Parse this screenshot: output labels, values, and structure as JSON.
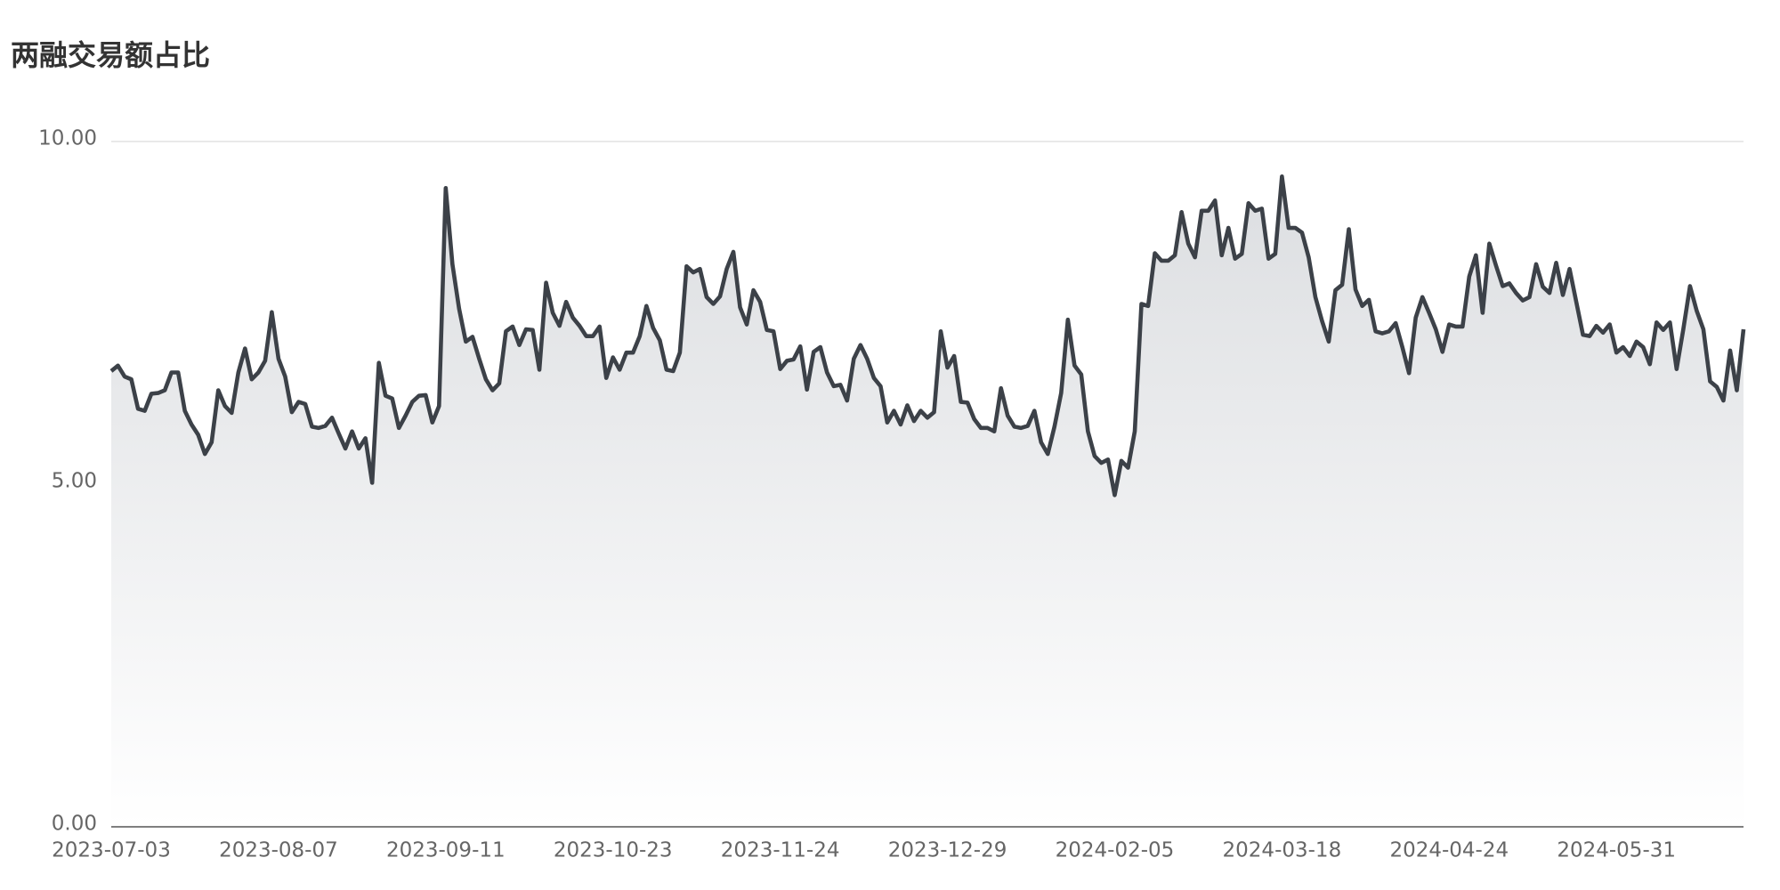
{
  "chart_data": {
    "type": "line",
    "title": "两融交易额占比",
    "categories": [
      "2023-07-03",
      null,
      null,
      null,
      null,
      null,
      null,
      null,
      null,
      null,
      null,
      null,
      null,
      null,
      null,
      null,
      null,
      null,
      null,
      null,
      null,
      null,
      null,
      null,
      null,
      "2023-08-07",
      null,
      null,
      null,
      null,
      null,
      null,
      null,
      null,
      null,
      null,
      null,
      null,
      null,
      null,
      null,
      null,
      null,
      null,
      null,
      null,
      null,
      null,
      null,
      null,
      "2023-09-11",
      null,
      null,
      null,
      null,
      null,
      null,
      null,
      null,
      null,
      null,
      null,
      null,
      null,
      null,
      null,
      null,
      null,
      null,
      null,
      null,
      null,
      null,
      null,
      null,
      "2023-10-23",
      null,
      null,
      null,
      null,
      null,
      null,
      null,
      null,
      null,
      null,
      null,
      null,
      null,
      null,
      null,
      null,
      null,
      null,
      null,
      null,
      null,
      null,
      null,
      null,
      "2023-11-24",
      null,
      null,
      null,
      null,
      null,
      null,
      null,
      null,
      null,
      null,
      null,
      null,
      null,
      null,
      null,
      null,
      null,
      null,
      null,
      null,
      null,
      null,
      null,
      null,
      "2023-12-29",
      null,
      null,
      null,
      null,
      null,
      null,
      null,
      null,
      null,
      null,
      null,
      null,
      null,
      null,
      null,
      null,
      null,
      null,
      null,
      null,
      null,
      null,
      null,
      null,
      "2024-02-05",
      null,
      null,
      null,
      null,
      null,
      null,
      null,
      null,
      null,
      null,
      null,
      null,
      null,
      null,
      null,
      null,
      null,
      null,
      null,
      null,
      null,
      null,
      null,
      null,
      "2024-03-18",
      null,
      null,
      null,
      null,
      null,
      null,
      null,
      null,
      null,
      null,
      null,
      null,
      null,
      null,
      null,
      null,
      null,
      null,
      null,
      null,
      null,
      null,
      null,
      null,
      "2024-04-24",
      null,
      null,
      null,
      null,
      null,
      null,
      null,
      null,
      null,
      null,
      null,
      null,
      null,
      null,
      null,
      null,
      null,
      null,
      null,
      null,
      null,
      null,
      null,
      null,
      "2024-05-31",
      null,
      null,
      null,
      null,
      null,
      null,
      null,
      null,
      null,
      null,
      null,
      null,
      null,
      null,
      null,
      null,
      null,
      null,
      null
    ],
    "values": [
      6.65,
      6.73,
      6.57,
      6.53,
      6.1,
      6.07,
      6.32,
      6.33,
      6.37,
      6.63,
      6.63,
      6.07,
      5.87,
      5.72,
      5.44,
      5.61,
      6.37,
      6.14,
      6.04,
      6.63,
      6.98,
      6.53,
      6.63,
      6.8,
      7.51,
      6.83,
      6.57,
      6.05,
      6.2,
      6.17,
      5.84,
      5.82,
      5.85,
      5.97,
      5.74,
      5.52,
      5.77,
      5.52,
      5.67,
      5.02,
      6.77,
      6.29,
      6.25,
      5.82,
      6.0,
      6.2,
      6.29,
      6.3,
      5.9,
      6.14,
      9.32,
      8.21,
      7.56,
      7.08,
      7.15,
      6.83,
      6.53,
      6.37,
      6.47,
      7.23,
      7.3,
      7.03,
      7.26,
      7.25,
      6.67,
      7.94,
      7.5,
      7.31,
      7.66,
      7.43,
      7.31,
      7.16,
      7.16,
      7.3,
      6.55,
      6.85,
      6.67,
      6.92,
      6.92,
      7.16,
      7.6,
      7.28,
      7.1,
      6.67,
      6.65,
      6.92,
      8.18,
      8.09,
      8.14,
      7.73,
      7.63,
      7.74,
      8.14,
      8.39,
      7.58,
      7.33,
      7.83,
      7.66,
      7.25,
      7.23,
      6.68,
      6.8,
      6.82,
      7.01,
      6.38,
      6.93,
      7.0,
      6.63,
      6.43,
      6.45,
      6.22,
      6.83,
      7.03,
      6.83,
      6.55,
      6.43,
      5.9,
      6.07,
      5.87,
      6.15,
      5.92,
      6.07,
      5.97,
      6.05,
      7.23,
      6.7,
      6.87,
      6.2,
      6.19,
      5.95,
      5.82,
      5.82,
      5.77,
      6.4,
      6.0,
      5.84,
      5.82,
      5.85,
      6.07,
      5.61,
      5.44,
      5.84,
      6.33,
      7.4,
      6.73,
      6.6,
      5.77,
      5.41,
      5.31,
      5.36,
      4.84,
      5.34,
      5.24,
      5.77,
      7.63,
      7.6,
      8.37,
      8.26,
      8.26,
      8.34,
      8.97,
      8.51,
      8.31,
      8.99,
      8.99,
      9.14,
      8.34,
      8.74,
      8.29,
      8.36,
      9.1,
      8.99,
      9.02,
      8.29,
      8.36,
      9.49,
      8.74,
      8.74,
      8.67,
      8.31,
      7.73,
      7.38,
      7.08,
      7.83,
      7.91,
      8.72,
      7.84,
      7.6,
      7.69,
      7.23,
      7.2,
      7.23,
      7.35,
      7.0,
      6.62,
      7.43,
      7.73,
      7.5,
      7.26,
      6.93,
      7.33,
      7.3,
      7.3,
      8.03,
      8.34,
      7.5,
      8.51,
      8.19,
      7.89,
      7.93,
      7.79,
      7.68,
      7.73,
      8.21,
      7.88,
      7.79,
      8.23,
      7.76,
      8.14,
      7.66,
      7.18,
      7.16,
      7.31,
      7.21,
      7.33,
      6.92,
      7.0,
      6.87,
      7.08,
      7.0,
      6.75,
      7.36,
      7.25,
      7.36,
      6.68,
      7.26,
      7.89,
      7.53,
      7.26,
      6.5,
      6.42,
      6.22,
      6.95,
      6.37,
      7.26
    ],
    "color": "#3c4148",
    "ylim": [
      0,
      10
    ],
    "yticks": [
      {
        "value": 0,
        "label": "0.00"
      },
      {
        "value": 5,
        "label": "5.00"
      },
      {
        "value": 10,
        "label": "10.00"
      }
    ],
    "grid": true
  }
}
